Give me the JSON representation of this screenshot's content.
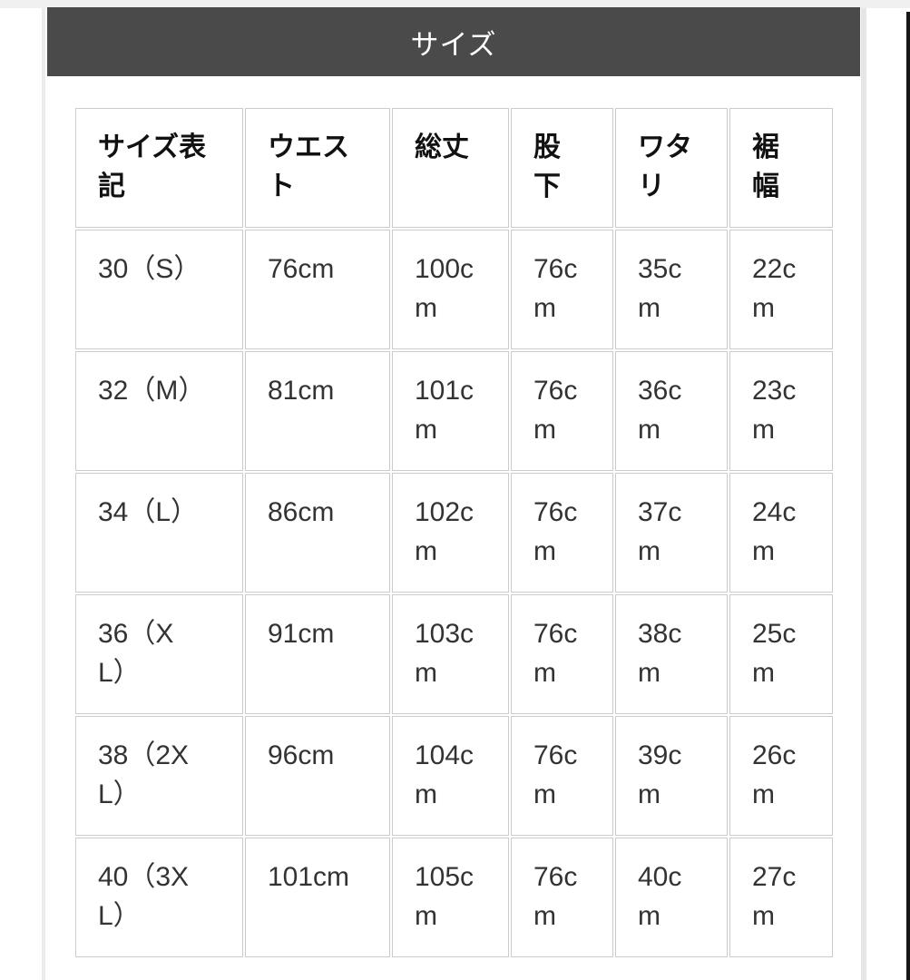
{
  "header": {
    "title": "サイズ"
  },
  "colors": {
    "title_bar_bg": "#4a4a4a",
    "title_bar_text": "#ffffff",
    "table_border": "#cccccc",
    "header_text": "#111111",
    "cell_text": "#333333"
  },
  "size_table": {
    "columns": [
      {
        "key": "size-label",
        "label": "サイズ表記",
        "display": "サイズ表\n記"
      },
      {
        "key": "waist",
        "label": "ウエスト",
        "display": "ウエス\nト"
      },
      {
        "key": "total-length",
        "label": "総丈",
        "display": "総丈"
      },
      {
        "key": "inseam",
        "label": "股下",
        "display": "股\n下"
      },
      {
        "key": "thigh",
        "label": "ワタリ",
        "display": "ワタ\nリ"
      },
      {
        "key": "hem-width",
        "label": "裾幅",
        "display": "裾\n幅"
      }
    ],
    "rows_display": [
      [
        "30（S）",
        "76cm",
        "100c\nm",
        "76c\nm",
        "35c\nm",
        "22c\nm"
      ],
      [
        "32（M）",
        "81cm",
        "101c\nm",
        "76c\nm",
        "36c\nm",
        "23c\nm"
      ],
      [
        "34（L）",
        "86cm",
        "102c\nm",
        "76c\nm",
        "37c\nm",
        "24c\nm"
      ],
      [
        "36（X\nL）",
        "91cm",
        "103c\nm",
        "76c\nm",
        "38c\nm",
        "25c\nm"
      ],
      [
        "38（2X\nL）",
        "96cm",
        "104c\nm",
        "76c\nm",
        "39c\nm",
        "26c\nm"
      ],
      [
        "40（3X\nL）",
        "101cm",
        "105c\nm",
        "76c\nm",
        "40c\nm",
        "27c\nm"
      ]
    ]
  },
  "chart_data": {
    "type": "table",
    "title": "サイズ",
    "columns": [
      "サイズ表記",
      "ウエスト",
      "総丈",
      "股下",
      "ワタリ",
      "裾幅"
    ],
    "rows": [
      [
        "30（S）",
        "76cm",
        "100cm",
        "76cm",
        "35cm",
        "22cm"
      ],
      [
        "32（M）",
        "81cm",
        "101cm",
        "76cm",
        "36cm",
        "23cm"
      ],
      [
        "34（L）",
        "86cm",
        "102cm",
        "76cm",
        "37cm",
        "24cm"
      ],
      [
        "36（XL）",
        "91cm",
        "103cm",
        "76cm",
        "38cm",
        "25cm"
      ],
      [
        "38（2XL）",
        "96cm",
        "104cm",
        "76cm",
        "39cm",
        "26cm"
      ],
      [
        "40（3XL）",
        "101cm",
        "105cm",
        "76cm",
        "40cm",
        "27cm"
      ]
    ]
  }
}
